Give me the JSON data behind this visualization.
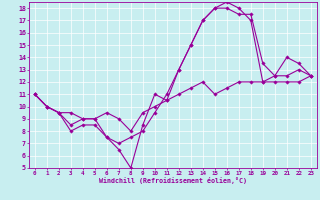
{
  "xlabel": "Windchill (Refroidissement éolien,°C)",
  "bg_color": "#c8eef0",
  "line_color": "#990099",
  "grid_color": "#ffffff",
  "xlim": [
    -0.5,
    23.5
  ],
  "ylim": [
    5,
    18.5
  ],
  "xticks": [
    0,
    1,
    2,
    3,
    4,
    5,
    6,
    7,
    8,
    9,
    10,
    11,
    12,
    13,
    14,
    15,
    16,
    17,
    18,
    19,
    20,
    21,
    22,
    23
  ],
  "yticks": [
    5,
    6,
    7,
    8,
    9,
    10,
    11,
    12,
    13,
    14,
    15,
    16,
    17,
    18
  ],
  "line1_x": [
    0,
    1,
    2,
    3,
    4,
    5,
    6,
    7,
    8,
    9,
    10,
    11,
    12,
    13,
    14,
    15,
    16,
    17,
    18,
    19,
    20,
    21,
    22,
    23
  ],
  "line1_y": [
    11,
    10,
    9.5,
    8.5,
    9,
    9,
    7.5,
    6.5,
    5,
    8.5,
    11,
    10.5,
    13,
    15,
    17,
    18,
    18,
    17.5,
    17.5,
    13.5,
    12.5,
    14,
    13.5,
    12.5
  ],
  "line2_x": [
    0,
    1,
    2,
    3,
    4,
    5,
    6,
    7,
    8,
    9,
    10,
    11,
    12,
    13,
    14,
    15,
    16,
    17,
    18,
    19,
    20,
    21,
    22,
    23
  ],
  "line2_y": [
    11,
    10,
    9.5,
    8,
    8.5,
    8.5,
    7.5,
    7,
    7.5,
    8,
    9.5,
    11,
    13,
    15,
    17,
    18,
    18.5,
    18,
    17,
    12,
    12,
    12,
    12,
    12.5
  ],
  "line3_x": [
    0,
    1,
    2,
    3,
    4,
    5,
    6,
    7,
    8,
    9,
    10,
    11,
    12,
    13,
    14,
    15,
    16,
    17,
    18,
    19,
    20,
    21,
    22,
    23
  ],
  "line3_y": [
    11,
    10,
    9.5,
    9.5,
    9,
    9,
    9.5,
    9,
    8,
    9.5,
    10,
    10.5,
    11,
    11.5,
    12,
    11,
    11.5,
    12,
    12,
    12,
    12.5,
    12.5,
    13,
    12.5
  ]
}
